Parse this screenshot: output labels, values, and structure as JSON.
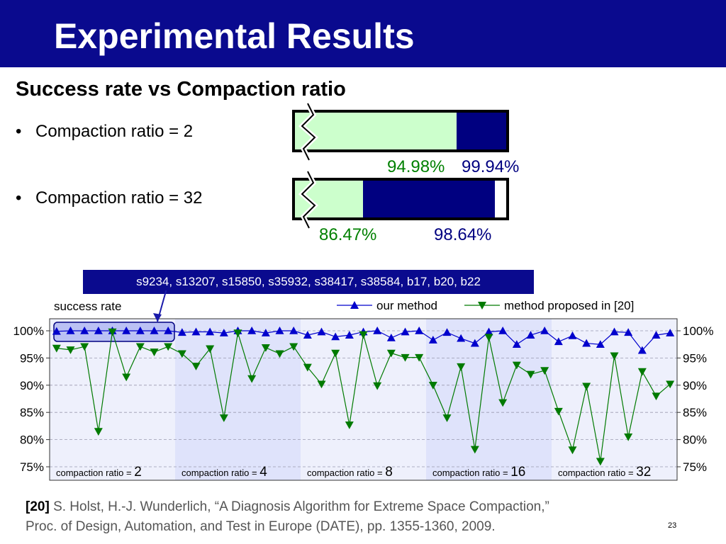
{
  "slide": {
    "title": "Experimental Results",
    "subtitle": "Success rate vs Compaction ratio",
    "bullets": [
      {
        "label": "Compaction ratio = 2",
        "baseline_pct": "94.98%",
        "ours_pct": "99.94%",
        "baseline": 94.98,
        "ours": 99.94
      },
      {
        "label": "Compaction ratio = 32",
        "baseline_pct": "86.47%",
        "ours_pct": "98.64%",
        "baseline": 86.47,
        "ours": 98.64
      }
    ],
    "callout": "s9234, s13207, s15850, s35932, s38417, s38584, b17, b20, b22",
    "reference": {
      "tag": "[20]",
      "line1": "S. Holst, H.-J. Wunderlich, “A Diagnosis Algorithm for Extreme Space Compaction,”",
      "line2": "Proc. of Design, Automation, and Test in Europe (DATE), pp. 1355-1360, 2009."
    },
    "page_number": "23",
    "colors": {
      "title_bar": "#0a0a8e",
      "light_green": "#ccffcc",
      "navy": "#000080",
      "green_text": "#008000"
    }
  },
  "chart_data": {
    "type": "line",
    "ylabel": "success rate",
    "ylim": [
      75,
      100
    ],
    "yticks": [
      "75%",
      "80%",
      "85%",
      "90%",
      "95%",
      "100%"
    ],
    "grid": true,
    "legend": "top-right",
    "groups": [
      {
        "label": "compaction ratio = ",
        "value": "2"
      },
      {
        "label": "compaction ratio = ",
        "value": "4"
      },
      {
        "label": "compaction ratio = ",
        "value": "8"
      },
      {
        "label": "compaction ratio = ",
        "value": "16"
      },
      {
        "label": "compaction ratio = ",
        "value": "32"
      }
    ],
    "series": [
      {
        "name": "our method",
        "color": "#0000cc",
        "marker": "triangle-up",
        "values": [
          99.9,
          100,
          100,
          100,
          100,
          100,
          100,
          100,
          100,
          99.7,
          99.8,
          99.8,
          99.6,
          100,
          100,
          99.6,
          100,
          100,
          99.2,
          99.8,
          98.9,
          99.2,
          99.8,
          100,
          98.7,
          99.8,
          100,
          98.3,
          99.7,
          98.6,
          97.7,
          99.8,
          100,
          97.5,
          99.2,
          100,
          98,
          99.1,
          97.7,
          97.5,
          99.8,
          99.7,
          96.4,
          99.2,
          99.6
        ]
      },
      {
        "name": "method proposed in [20]",
        "color": "#007a00",
        "marker": "triangle-down",
        "values": [
          96.8,
          96.5,
          97.1,
          81.5,
          99.8,
          91.5,
          97.1,
          96.1,
          97.1,
          95.8,
          93.5,
          96.7,
          84,
          99.6,
          91.2,
          96.9,
          95.8,
          97.1,
          93.3,
          90.2,
          95.9,
          82.7,
          99.3,
          89.9,
          95.9,
          95.1,
          95.1,
          90,
          84,
          93.4,
          78.2,
          98.8,
          86.8,
          93.7,
          92,
          92.7,
          85.2,
          78.1,
          89.8,
          76,
          95.4,
          80.5,
          92.5,
          88,
          90.2
        ]
      }
    ]
  }
}
